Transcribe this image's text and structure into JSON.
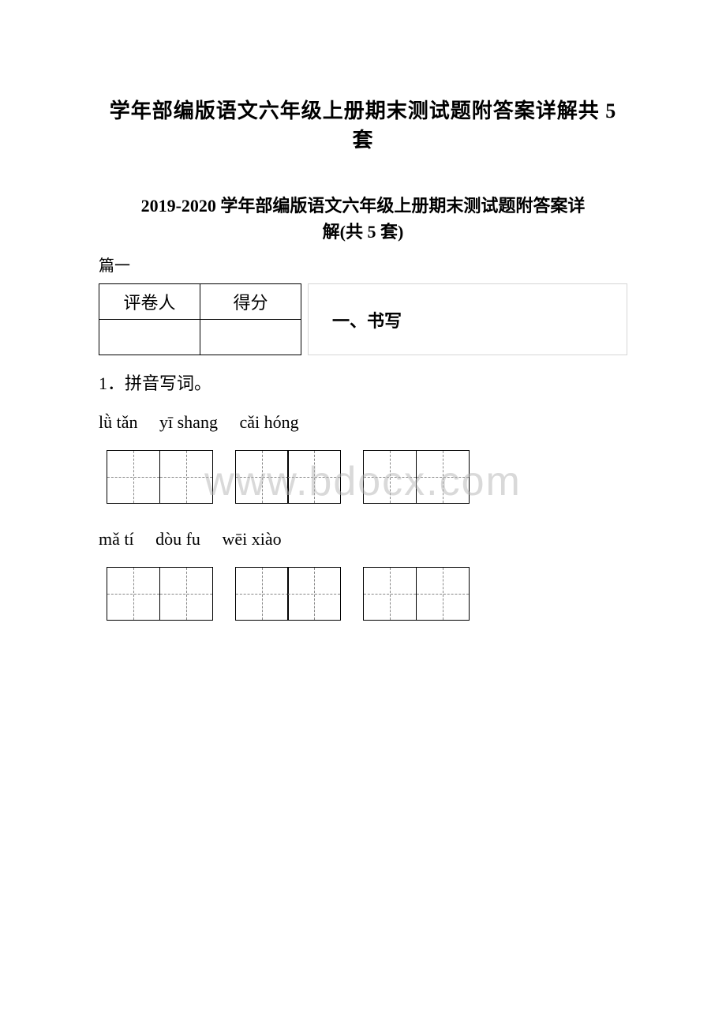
{
  "titles": {
    "main": "学年部编版语文六年级上册期末测试题附答案详解共 5 套",
    "sub_line1": "2019-2020 学年部编版语文六年级上册期末测试题附答案详",
    "sub_line2": "解(共 5 套)"
  },
  "section_label": "篇一",
  "score_table": {
    "headers": [
      "评卷人",
      "得分"
    ]
  },
  "section_name": "一、书写",
  "question": "1．拼音写词。",
  "pinyin_rows": [
    [
      "lǜ tǎn",
      "yī shang",
      "cǎi hóng"
    ],
    [
      "mǎ  tí",
      "dòu fu",
      "wēi xiào"
    ]
  ],
  "box_layout": {
    "groups_per_row": 3,
    "boxes_per_group": 2
  },
  "watermark": "www.bdocx.com",
  "colors": {
    "background": "#ffffff",
    "text": "#000000",
    "border": "#000000",
    "light_border": "#d5d5d5",
    "dash": "#888888",
    "watermark": "rgba(180, 180, 180, 0.5)"
  },
  "fonts": {
    "main_size": 26,
    "sub_size": 22,
    "body_size": 22,
    "pinyin_size": 22,
    "watermark_size": 52
  }
}
